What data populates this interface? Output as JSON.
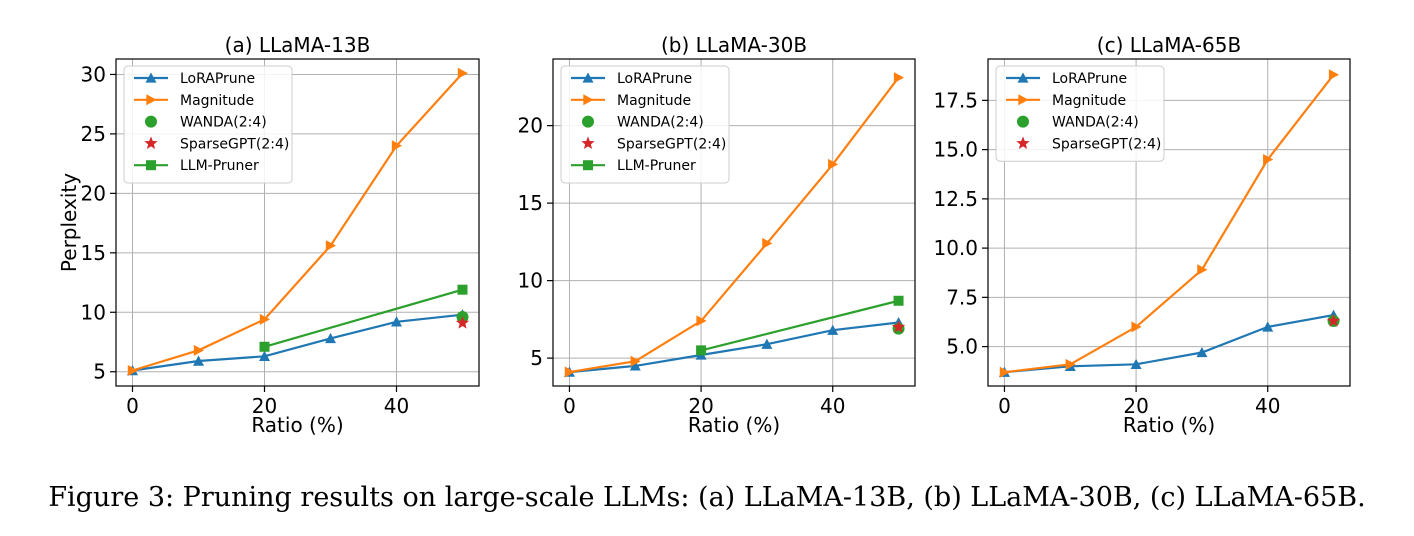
{
  "caption": "Figure 3: Pruning results on large-scale LLMs: (a) LLaMA-13B, (b) LLaMA-30B, (c) LLaMA-65B.",
  "colors": {
    "LoRAPrune": "#1f77b4",
    "Magnitude": "#ff7f0e",
    "WANDA(2:4)": "#2ca02c",
    "SparseGPT(2:4)": "#d62728",
    "LLM-Pruner": "#2ca02c",
    "grid": "#b0b0b0"
  },
  "chart_data": [
    {
      "type": "line",
      "title": "(a) LLaMA-13B",
      "xlabel": "Ratio (%)",
      "ylabel": "Perplexity",
      "xlim": [
        -2.5,
        52.5
      ],
      "ylim": [
        3.8,
        31.3
      ],
      "xticks": [
        0,
        20,
        40
      ],
      "yticks": [
        5,
        10,
        15,
        20,
        25,
        30
      ],
      "ytick_labels": [
        "5",
        "10",
        "15",
        "20",
        "25",
        "30"
      ],
      "grid": true,
      "legend_position": "upper-left",
      "series": [
        {
          "name": "LoRAPrune",
          "marker": "triangle-up",
          "x": [
            0,
            10,
            20,
            30,
            40,
            50
          ],
          "y": [
            5.1,
            5.9,
            6.3,
            7.8,
            9.2,
            9.8
          ]
        },
        {
          "name": "Magnitude",
          "marker": "triangle-right",
          "x": [
            0,
            10,
            20,
            30,
            40,
            50
          ],
          "y": [
            5.1,
            6.8,
            9.4,
            15.6,
            24.0,
            30.1
          ]
        },
        {
          "name": "WANDA(2:4)",
          "marker": "circle",
          "x": [
            50
          ],
          "y": [
            9.6
          ]
        },
        {
          "name": "SparseGPT(2:4)",
          "marker": "star",
          "x": [
            50
          ],
          "y": [
            9.1
          ]
        },
        {
          "name": "LLM-Pruner",
          "marker": "square",
          "x": [
            20,
            50
          ],
          "y": [
            7.1,
            11.9
          ]
        }
      ]
    },
    {
      "type": "line",
      "title": "(b) LLaMA-30B",
      "xlabel": "Ratio (%)",
      "ylabel": "",
      "xlim": [
        -2.5,
        52.5
      ],
      "ylim": [
        3.2,
        24.3
      ],
      "xticks": [
        0,
        20,
        40
      ],
      "yticks": [
        5,
        10,
        15,
        20
      ],
      "ytick_labels": [
        "5",
        "10",
        "15",
        "20"
      ],
      "grid": true,
      "legend_position": "upper-left",
      "series": [
        {
          "name": "LoRAPrune",
          "marker": "triangle-up",
          "x": [
            0,
            10,
            20,
            30,
            40,
            50
          ],
          "y": [
            4.1,
            4.5,
            5.2,
            5.9,
            6.8,
            7.3
          ]
        },
        {
          "name": "Magnitude",
          "marker": "triangle-right",
          "x": [
            0,
            10,
            20,
            30,
            40,
            50
          ],
          "y": [
            4.1,
            4.8,
            7.4,
            12.4,
            17.5,
            23.1
          ]
        },
        {
          "name": "WANDA(2:4)",
          "marker": "circle",
          "x": [
            50
          ],
          "y": [
            6.9
          ]
        },
        {
          "name": "SparseGPT(2:4)",
          "marker": "star",
          "x": [
            50
          ],
          "y": [
            7.0
          ]
        },
        {
          "name": "LLM-Pruner",
          "marker": "square",
          "x": [
            20,
            50
          ],
          "y": [
            5.5,
            8.7
          ]
        }
      ]
    },
    {
      "type": "line",
      "title": "(c) LLaMA-65B",
      "xlabel": "Ratio (%)",
      "ylabel": "",
      "xlim": [
        -2.5,
        52.5
      ],
      "ylim": [
        3.0,
        19.6
      ],
      "xticks": [
        0,
        20,
        40
      ],
      "yticks": [
        5.0,
        7.5,
        10.0,
        12.5,
        15.0,
        17.5
      ],
      "ytick_labels": [
        "5.0",
        "7.5",
        "10.0",
        "12.5",
        "15.0",
        "17.5"
      ],
      "grid": true,
      "legend_position": "upper-left",
      "series": [
        {
          "name": "LoRAPrune",
          "marker": "triangle-up",
          "x": [
            0,
            10,
            20,
            30,
            40,
            50
          ],
          "y": [
            3.7,
            4.0,
            4.1,
            4.7,
            6.0,
            6.6
          ]
        },
        {
          "name": "Magnitude",
          "marker": "triangle-right",
          "x": [
            0,
            10,
            20,
            30,
            40,
            50
          ],
          "y": [
            3.7,
            4.1,
            6.0,
            8.9,
            14.5,
            18.8
          ]
        },
        {
          "name": "WANDA(2:4)",
          "marker": "circle",
          "x": [
            50
          ],
          "y": [
            6.3
          ]
        },
        {
          "name": "SparseGPT(2:4)",
          "marker": "star",
          "x": [
            50
          ],
          "y": [
            6.3
          ]
        }
      ]
    }
  ]
}
